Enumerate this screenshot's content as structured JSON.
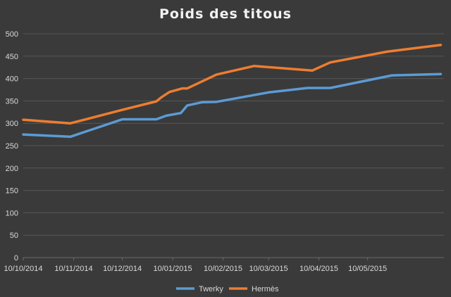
{
  "chart_data": {
    "type": "line",
    "title": "Poids des titous",
    "xlabel": "",
    "ylabel": "",
    "ylim": [
      0,
      500
    ],
    "yticks": [
      0,
      50,
      100,
      150,
      200,
      250,
      300,
      350,
      400,
      450,
      500
    ],
    "xlim": [
      "2014-10-10",
      "2015-06-26"
    ],
    "x_tick_dates": [
      "2014-10-10",
      "2014-11-10",
      "2014-12-10",
      "2015-01-10",
      "2015-02-10",
      "2015-03-10",
      "2015-04-10",
      "2015-05-10"
    ],
    "x_tick_labels": [
      "10/10/2014",
      "10/11/2014",
      "10/12/2014",
      "10/01/2015",
      "10/02/2015",
      "10/03/2015",
      "10/04/2015",
      "10/05/2015"
    ],
    "grid": true,
    "legend_position": "bottom",
    "series": [
      {
        "name": "Twerky",
        "color": "#5b9bd5",
        "points": [
          [
            "2014-10-10",
            275
          ],
          [
            "2014-11-08",
            270
          ],
          [
            "2014-12-10",
            309
          ],
          [
            "2014-12-31",
            309
          ],
          [
            "2015-01-06",
            317
          ],
          [
            "2015-01-15",
            323
          ],
          [
            "2015-01-19",
            340
          ],
          [
            "2015-01-28",
            347
          ],
          [
            "2015-02-06",
            348
          ],
          [
            "2015-03-10",
            369
          ],
          [
            "2015-04-03",
            379
          ],
          [
            "2015-04-17",
            379
          ],
          [
            "2015-05-25",
            407
          ],
          [
            "2015-06-24",
            410
          ]
        ]
      },
      {
        "name": "Hermès",
        "color": "#ed7d31",
        "points": [
          [
            "2014-10-10",
            308
          ],
          [
            "2014-11-08",
            300
          ],
          [
            "2014-12-10",
            330
          ],
          [
            "2014-12-31",
            349
          ],
          [
            "2015-01-03",
            358
          ],
          [
            "2015-01-08",
            370
          ],
          [
            "2015-01-16",
            378
          ],
          [
            "2015-01-19",
            378
          ],
          [
            "2015-02-06",
            409
          ],
          [
            "2015-03-01",
            428
          ],
          [
            "2015-04-06",
            418
          ],
          [
            "2015-04-17",
            436
          ],
          [
            "2015-05-22",
            460
          ],
          [
            "2015-06-24",
            475
          ]
        ]
      }
    ]
  }
}
